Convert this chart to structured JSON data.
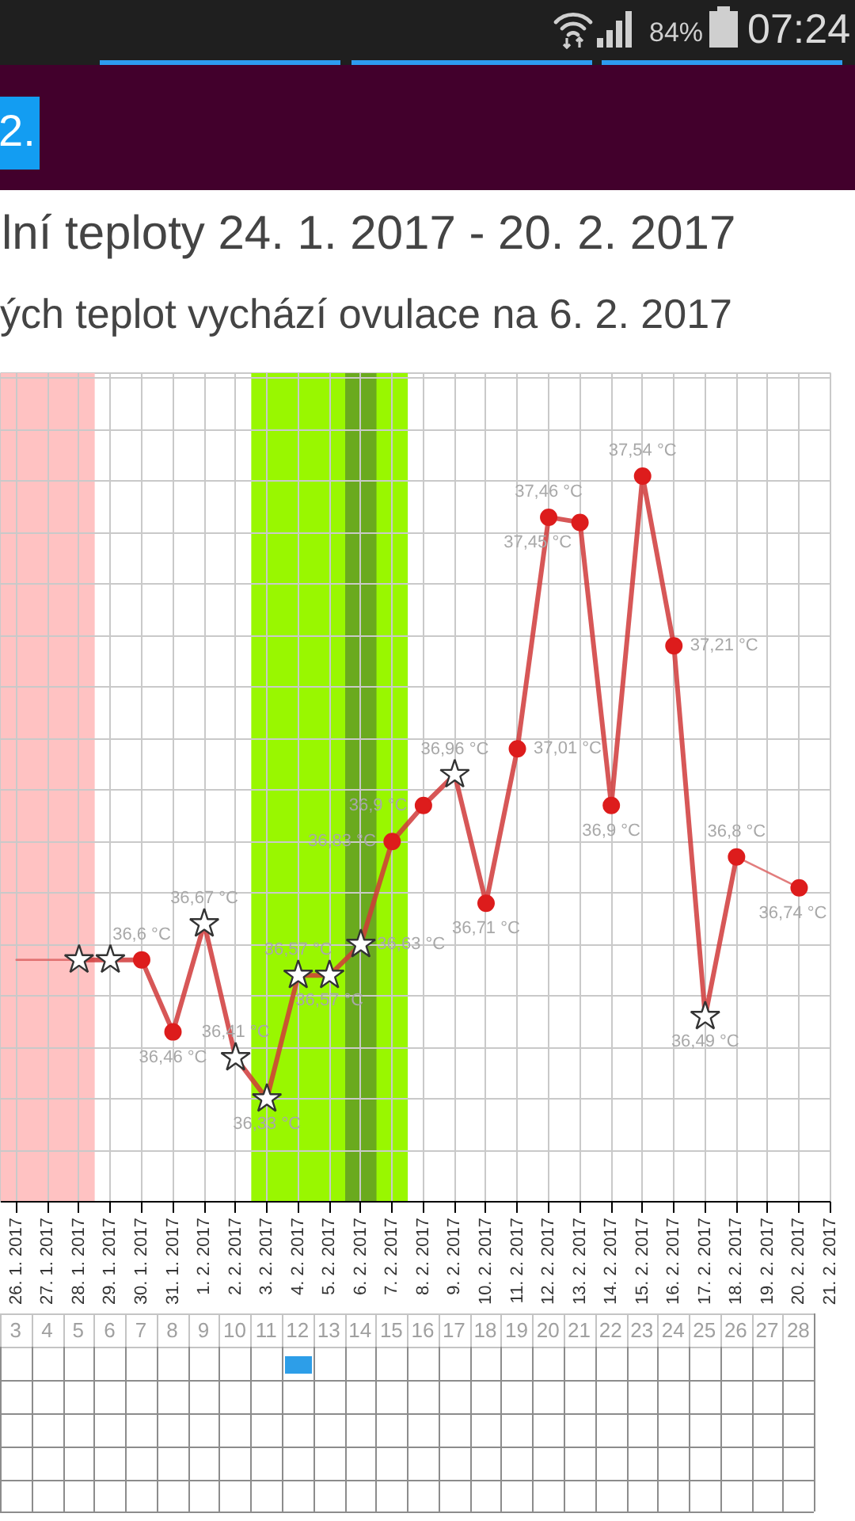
{
  "chart_data": {
    "type": "line",
    "title": "lní teploty 24. 1. 2017 - 20. 2. 2017",
    "subtitle": "ých teplot vychází ovulace na 6. 2. 2017",
    "annotations": [
      "84%",
      "07:24",
      "2."
    ],
    "categories": [
      "26. 1. 2017",
      "27. 1. 2017",
      "28. 1. 2017",
      "29. 1. 2017",
      "30. 1. 2017",
      "31. 1. 2017",
      "1. 2. 2017",
      "2. 2. 2017",
      "3. 2. 2017",
      "4. 2. 2017",
      "5. 2. 2017",
      "6. 2. 2017",
      "7. 2. 2017",
      "8. 2. 2017",
      "9. 2. 2017",
      "10. 2. 2017",
      "11. 2. 2017",
      "12. 2. 2017",
      "13. 2. 2017",
      "14. 2. 2017",
      "15. 2. 2017",
      "16. 2. 2017",
      "17. 2. 2017",
      "18. 2. 2017",
      "19. 2. 2017",
      "20. 2. 2017",
      "21. 2. 2017"
    ],
    "series": [
      {
        "color": "#dd6666",
        "x": [
          "26. 1. 2017",
          "28. 1. 2017"
        ],
        "values": [
          36.6,
          36.6
        ]
      },
      {
        "color": "#d03a3a",
        "values": [
          null,
          null,
          36.6,
          36.6,
          36.6,
          36.46,
          36.67,
          36.41,
          36.33,
          36.57,
          36.57,
          36.63,
          36.83,
          36.9,
          36.96,
          36.71,
          37.01,
          37.46,
          37.45,
          36.9,
          37.54,
          37.21,
          36.49,
          36.8,
          null,
          null,
          null
        ],
        "value_labels": [
          null,
          null,
          null,
          null,
          "36,6 °C",
          "36,46 °C",
          "36,67 °C",
          "36,41 °C",
          "36,33 °C",
          "36,57 °C",
          "36,57 °C",
          "36,63 °C",
          "36,83 °C",
          "36,9 °C",
          "36,96 °C",
          "36,71 °C",
          "37,01 °C",
          "37,46 °C",
          "37,45 °C",
          "36,9 °C",
          "37,54 °C",
          "37,21 °C",
          "36,49 °C",
          "36,8 °C",
          null,
          null,
          null
        ]
      },
      {
        "color": "#dd6666",
        "x": [
          "18. 2. 2017",
          "20. 2. 2017"
        ],
        "values": [
          36.8,
          36.74
        ],
        "value_labels": [
          null,
          "36,74 °C"
        ]
      },
      {
        "type": "scatter",
        "marker": "star",
        "color": "#ffffff",
        "values": [
          null,
          null,
          36.6,
          36.6,
          null,
          null,
          36.67,
          36.41,
          36.33,
          36.57,
          36.57,
          36.63,
          null,
          null,
          36.96,
          null,
          null,
          null,
          null,
          null,
          null,
          null,
          36.49,
          null,
          null,
          null,
          null
        ]
      },
      {
        "type": "scatter",
        "marker": "circle",
        "color": "#dd1c1c",
        "values": [
          null,
          null,
          null,
          null,
          36.6,
          36.46,
          null,
          null,
          null,
          null,
          null,
          null,
          36.83,
          36.9,
          null,
          36.71,
          37.01,
          37.46,
          37.45,
          36.9,
          37.54,
          37.21,
          null,
          36.8,
          null,
          36.74,
          null
        ]
      }
    ],
    "ylim": [
      36.13,
      37.74
    ],
    "yticks": [
      {
        "value": 36.13,
        "label": null
      },
      {
        "value": 36.23,
        "label": null
      },
      {
        "value": 36.33,
        "label": null
      },
      {
        "value": 36.43,
        "label": null
      },
      {
        "value": 36.53,
        "label": null
      },
      {
        "value": 36.63,
        "label": null
      },
      {
        "value": 36.73,
        "label": null
      },
      {
        "value": 36.83,
        "label": null
      },
      {
        "value": 36.93,
        "label": null
      },
      {
        "value": 37.03,
        "label": null
      },
      {
        "value": 37.13,
        "label": null
      },
      {
        "value": 37.23,
        "label": null
      },
      {
        "value": 37.33,
        "label": null
      },
      {
        "value": 37.43,
        "label": null
      },
      {
        "value": 37.53,
        "label": null
      },
      {
        "value": 37.63,
        "label": null
      },
      {
        "value": 37.73,
        "label": null
      }
    ],
    "x2lim": [
      2.5,
      29
    ],
    "x2ticks": [
      3,
      4,
      5,
      6,
      7,
      8,
      9,
      10,
      11,
      12,
      13,
      14,
      15,
      16,
      17,
      18,
      19,
      20,
      21,
      22,
      23,
      24,
      25,
      26,
      27,
      28
    ],
    "bands": [
      {
        "axis": "x",
        "from": "26. 1. 2017",
        "to": "28. 1. 2017",
        "color": "#ffc2c2"
      },
      {
        "axis": "x",
        "from": "3. 2. 2017",
        "to": "7. 2. 2017",
        "color": "#99f700"
      },
      {
        "axis": "x",
        "from": "6. 2. 2017",
        "to": "6. 2. 2017",
        "color": "#6aaa1e"
      }
    ],
    "grid": true,
    "tick_labels": "x"
  }
}
